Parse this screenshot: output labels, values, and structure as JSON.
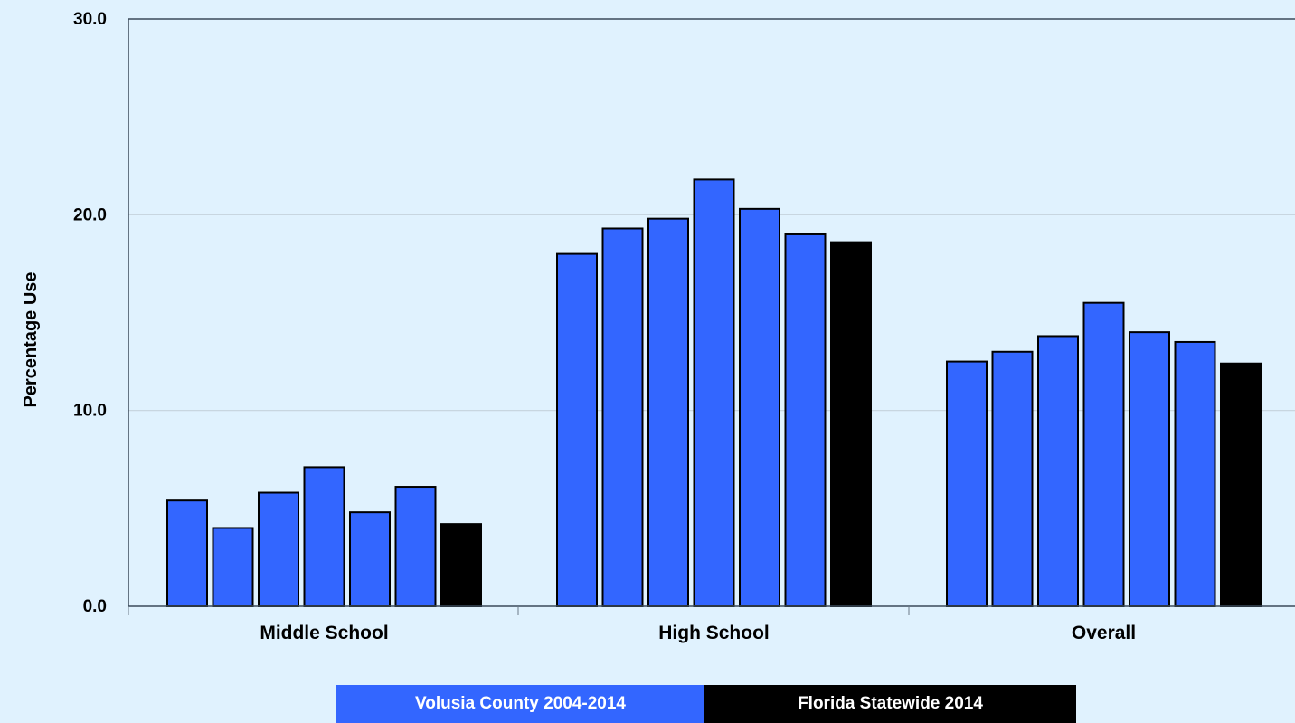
{
  "chart_data": {
    "type": "bar",
    "ylabel": "Percentage Use",
    "ylim": [
      0,
      30
    ],
    "yticks": [
      "0.0",
      "10.0",
      "20.0",
      "30.0"
    ],
    "ytick_values": [
      0,
      10,
      20,
      30
    ],
    "grid": true,
    "categories": [
      "Middle School",
      "High School",
      "Overall"
    ],
    "series": [
      {
        "name": "Volusia County 2004-2014",
        "color": "#3366ff",
        "values": [
          [
            5.4,
            4.0,
            5.8,
            7.1,
            4.8,
            6.1
          ],
          [
            18.0,
            19.3,
            19.8,
            21.8,
            20.3,
            19.0
          ],
          [
            12.5,
            13.0,
            13.8,
            15.5,
            14.0,
            13.5
          ]
        ]
      },
      {
        "name": "Florida Statewide 2014",
        "color": "#000000",
        "values": [
          4.2,
          18.6,
          12.4
        ]
      }
    ],
    "legend_position": "bottom"
  }
}
